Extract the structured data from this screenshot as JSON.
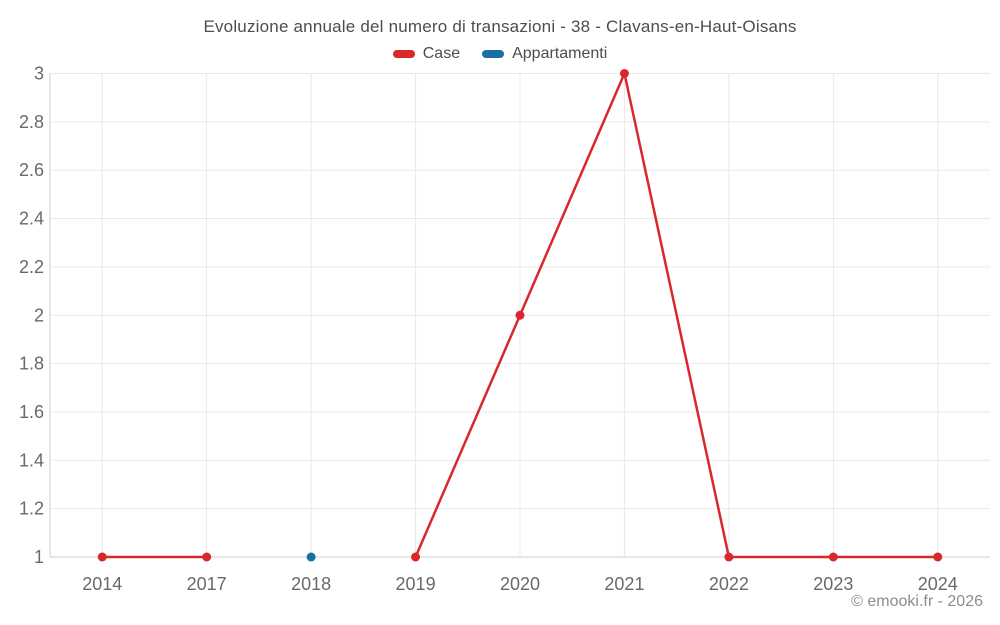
{
  "title": "Evoluzione annuale del numero di transazioni - 38 - Clavans-en-Haut-Oisans",
  "legend": [
    {
      "label": "Case",
      "color": "#d9282c"
    },
    {
      "label": "Appartamenti",
      "color": "#1a6fa5"
    }
  ],
  "footer": {
    "copyright": "© emooki.fr - 2026"
  },
  "colors": {
    "grid": "#e9e9e9",
    "axis": "#cfcfcf",
    "tick_text": "#666a6e",
    "title_text": "#4d4d4d",
    "case_red": "#d9282c",
    "appartamenti_blue": "#1a6fa5"
  },
  "chart_data": {
    "type": "line",
    "title": "Evoluzione annuale del numero di transazioni - 38 - Clavans-en-Haut-Oisans",
    "categories": [
      "2014",
      "2017",
      "2018",
      "2019",
      "2020",
      "2021",
      "2022",
      "2023",
      "2024"
    ],
    "series": [
      {
        "name": "Case",
        "color": "#d9282c",
        "values": [
          1,
          1,
          null,
          1,
          2,
          3,
          1,
          1,
          1
        ]
      },
      {
        "name": "Appartamenti",
        "color": "#1a6fa5",
        "values": [
          null,
          null,
          1,
          null,
          null,
          null,
          null,
          null,
          null
        ]
      }
    ],
    "xlabel": "",
    "ylabel": "",
    "ylim": [
      1,
      3
    ],
    "ytick_step": 0.2,
    "yticks": [
      1,
      1.2,
      1.4,
      1.6,
      1.8,
      2,
      2.2,
      2.4,
      2.6,
      2.8,
      3
    ],
    "grid": true,
    "legend_position": "top"
  }
}
